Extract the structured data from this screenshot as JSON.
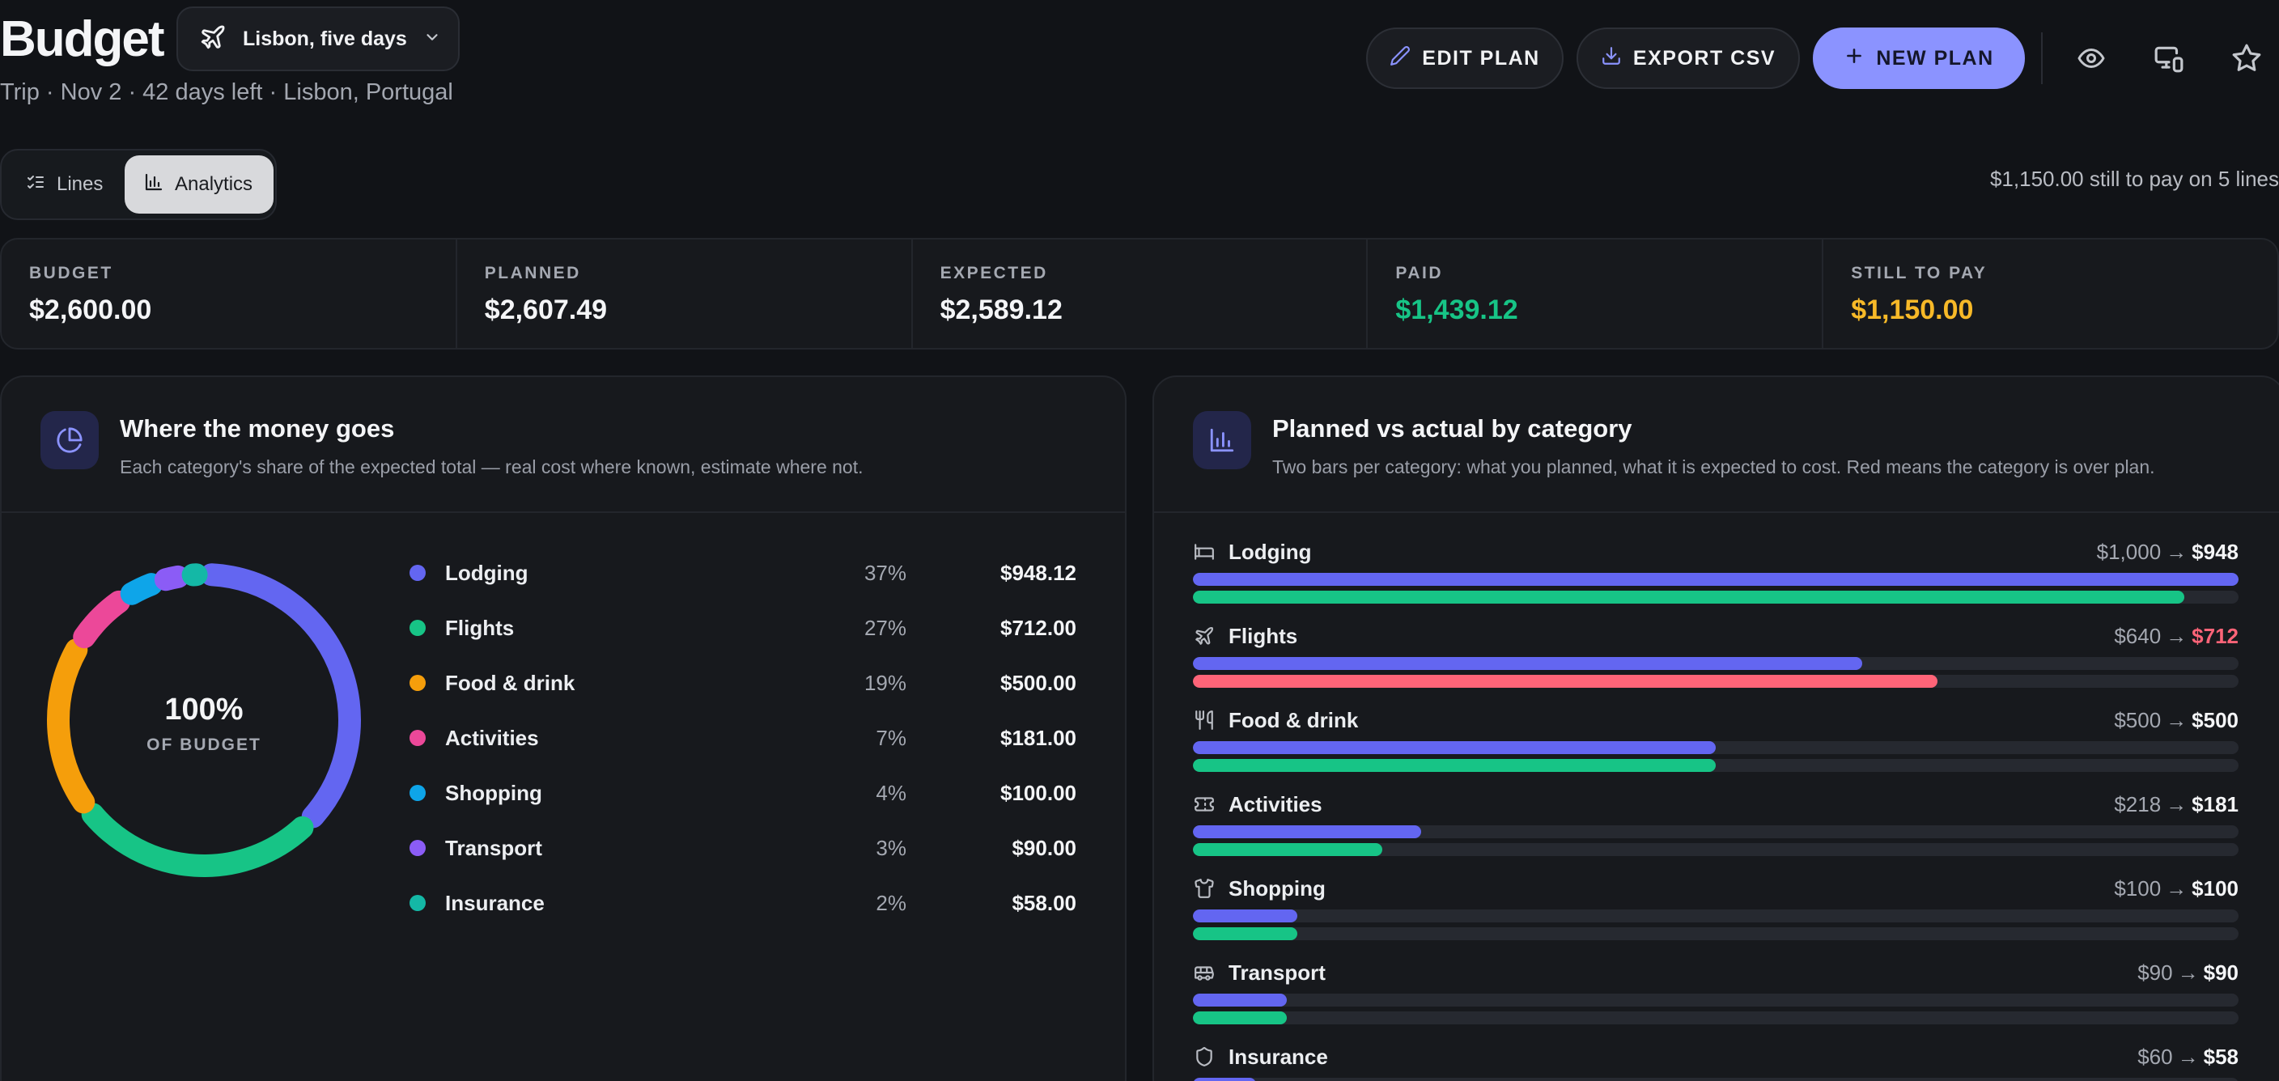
{
  "header": {
    "title": "Budget",
    "trip_selector": "Lisbon, five days",
    "subtitle": "Trip · Nov 2 · 42 days left · Lisbon, Portugal",
    "edit_label": "EDIT PLAN",
    "export_label": "EXPORT CSV",
    "new_label": "NEW PLAN"
  },
  "view_toggle": {
    "lines": "Lines",
    "analytics": "Analytics",
    "active": "analytics"
  },
  "still_to_pay_note": "$1,150.00 still to pay on 5 lines",
  "kpis": [
    {
      "label": "BUDGET",
      "value": "$2,600.00",
      "color": "#f4f5f7"
    },
    {
      "label": "PLANNED",
      "value": "$2,607.49",
      "color": "#f4f5f7"
    },
    {
      "label": "EXPECTED",
      "value": "$2,589.12",
      "color": "#f4f5f7"
    },
    {
      "label": "PAID",
      "value": "$1,439.12",
      "color": "#17c486"
    },
    {
      "label": "STILL TO PAY",
      "value": "$1,150.00",
      "color": "#f7b928"
    }
  ],
  "share_card": {
    "title": "Where the money goes",
    "description": "Each category's share of the expected total — real cost where known, estimate where not.",
    "center_value": "100%",
    "center_label": "OF BUDGET",
    "categories": [
      {
        "name": "Lodging",
        "pct": "37%",
        "share": 37,
        "amount": "$948.12",
        "color": "#6366f1"
      },
      {
        "name": "Flights",
        "pct": "27%",
        "share": 27,
        "amount": "$712.00",
        "color": "#17c486"
      },
      {
        "name": "Food & drink",
        "pct": "19%",
        "share": 19,
        "amount": "$500.00",
        "color": "#f59e0b"
      },
      {
        "name": "Activities",
        "pct": "7%",
        "share": 7,
        "amount": "$181.00",
        "color": "#ec4899"
      },
      {
        "name": "Shopping",
        "pct": "4%",
        "share": 4,
        "amount": "$100.00",
        "color": "#0ea5e9"
      },
      {
        "name": "Transport",
        "pct": "3%",
        "share": 3,
        "amount": "$90.00",
        "color": "#8b5cf6"
      },
      {
        "name": "Insurance",
        "pct": "2%",
        "share": 2,
        "amount": "$58.00",
        "color": "#14b8a6"
      }
    ]
  },
  "compare_card": {
    "title": "Planned vs actual by category",
    "description": "Two bars per category: what you planned, what it is expected to cost. Red means the category is over plan.",
    "arrow": "→",
    "categories": [
      {
        "name": "Lodging",
        "icon": "bed-icon",
        "planned": "$1,000",
        "expected": "$948",
        "planned_value": 1000,
        "expected_value": 948,
        "over": false
      },
      {
        "name": "Flights",
        "icon": "plane-icon",
        "planned": "$640",
        "expected": "$712",
        "planned_value": 640,
        "expected_value": 712,
        "over": true
      },
      {
        "name": "Food & drink",
        "icon": "utensils-icon",
        "planned": "$500",
        "expected": "$500",
        "planned_value": 500,
        "expected_value": 500,
        "over": false
      },
      {
        "name": "Activities",
        "icon": "ticket-icon",
        "planned": "$218",
        "expected": "$181",
        "planned_value": 218,
        "expected_value": 181,
        "over": false
      },
      {
        "name": "Shopping",
        "icon": "shirt-icon",
        "planned": "$100",
        "expected": "$100",
        "planned_value": 100,
        "expected_value": 100,
        "over": false
      },
      {
        "name": "Transport",
        "icon": "bus-icon",
        "planned": "$90",
        "expected": "$90",
        "planned_value": 90,
        "expected_value": 90,
        "over": false
      },
      {
        "name": "Insurance",
        "icon": "shield-icon",
        "planned": "$60",
        "expected": "$58",
        "planned_value": 60,
        "expected_value": 58,
        "over": false
      }
    ]
  },
  "chart_data": {
    "type": "bar",
    "categories": [
      "Lodging",
      "Flights",
      "Food & drink",
      "Activities",
      "Shopping",
      "Transport",
      "Insurance"
    ],
    "series": [
      {
        "values": [
          1000,
          640,
          500,
          218,
          100,
          90,
          60
        ]
      },
      {
        "values": [
          948,
          712,
          500,
          181,
          100,
          90,
          58
        ]
      }
    ]
  }
}
